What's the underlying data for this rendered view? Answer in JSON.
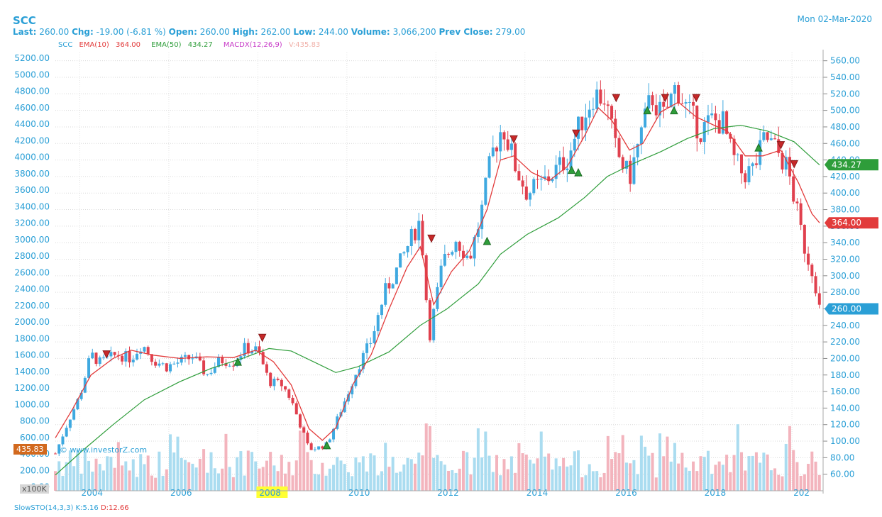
{
  "header": {
    "ticker": "SCC",
    "date": "Mon 02-Mar-2020",
    "last_label": "Last:",
    "last": "260.00",
    "chg_label": "Chg:",
    "chg": "-19.00 (-6.81 %)",
    "open_label": "Open:",
    "open": "260.00",
    "high_label": "High:",
    "high": "262.00",
    "low_label": "Low:",
    "low": "244.00",
    "volume_label": "Volume:",
    "volume": "3,066,200",
    "prev_label": "Prev Close:",
    "prev": "279.00"
  },
  "legend": {
    "symbol": "SCC",
    "ema10_label": "EMA(10)",
    "ema10_value": "364.00",
    "ema50_label": "EMA(50)",
    "ema50_value": "434.27",
    "macd_label": "MACDX(12,26,9)",
    "vol_label": "V:435.83"
  },
  "badges": {
    "ema50": "434.27",
    "ema10": "364.00",
    "last": "260.00",
    "volume": "435.83",
    "volume_unit": "x100K"
  },
  "watermark": "© www.investorZ.com",
  "slowsto": {
    "label": "SlowSTO(14,3,3)",
    "k": "K:5.16",
    "d": "D:12.66"
  },
  "colors": {
    "up": "#3fa9e0",
    "down": "#e0404e",
    "ema10": "#e23b3b",
    "ema50": "#2e9d3a",
    "vol_up": "#aadcf0",
    "vol_down": "#f3b4bd",
    "accent": "#2a9fd6",
    "highlight": "#ffff33"
  },
  "chart_data": {
    "type": "candlestick",
    "frequency": "monthly",
    "x_ticks": [
      "2004",
      "2006",
      "2008",
      "2010",
      "2012",
      "2014",
      "2016",
      "2018",
      "202"
    ],
    "highlighted_x_tick": "2008",
    "price_axis_right": {
      "ylim": [
        40,
        570
      ],
      "ticks": [
        "560.00",
        "540.00",
        "520.00",
        "500.00",
        "480.00",
        "460.00",
        "440.00",
        "420.00",
        "400.00",
        "380.00",
        "360.00",
        "340.00",
        "320.00",
        "300.00",
        "280.00",
        "260.00",
        "240.00",
        "220.00",
        "200.00",
        "180.00",
        "160.00",
        "140.00",
        "120.00",
        "100.00",
        "80.00",
        "60.00"
      ]
    },
    "volume_axis_left": {
      "unit": "x100K",
      "ticks": [
        "5200.00",
        "5000.00",
        "4800.00",
        "4600.00",
        "4400.00",
        "4200.00",
        "4000.00",
        "3800.00",
        "3600.00",
        "3400.00",
        "3200.00",
        "3000.00",
        "2800.00",
        "2600.00",
        "2400.00",
        "2200.00",
        "2000.00",
        "1800.00",
        "1600.00",
        "1400.00",
        "1200.00",
        "1000.00",
        "800.00",
        "600.00",
        "400.00",
        "200.00",
        "0.00"
      ]
    },
    "close_points": [
      {
        "x": 2003.0,
        "c": 85
      },
      {
        "x": 2003.3,
        "c": 125
      },
      {
        "x": 2003.55,
        "c": 155
      },
      {
        "x": 2003.8,
        "c": 205
      },
      {
        "x": 2004.0,
        "c": 195
      },
      {
        "x": 2004.4,
        "c": 205
      },
      {
        "x": 2004.7,
        "c": 200
      },
      {
        "x": 2004.95,
        "c": 218
      },
      {
        "x": 2005.2,
        "c": 198
      },
      {
        "x": 2005.5,
        "c": 190
      },
      {
        "x": 2005.8,
        "c": 196
      },
      {
        "x": 2006.1,
        "c": 202
      },
      {
        "x": 2006.4,
        "c": 180
      },
      {
        "x": 2006.7,
        "c": 198
      },
      {
        "x": 2007.0,
        "c": 196
      },
      {
        "x": 2007.25,
        "c": 212
      },
      {
        "x": 2007.55,
        "c": 210
      },
      {
        "x": 2007.8,
        "c": 172
      },
      {
        "x": 2008.1,
        "c": 168
      },
      {
        "x": 2008.3,
        "c": 150
      },
      {
        "x": 2008.5,
        "c": 120
      },
      {
        "x": 2008.7,
        "c": 90
      },
      {
        "x": 2008.9,
        "c": 92
      },
      {
        "x": 2009.1,
        "c": 96
      },
      {
        "x": 2009.3,
        "c": 122
      },
      {
        "x": 2009.55,
        "c": 155
      },
      {
        "x": 2009.8,
        "c": 190
      },
      {
        "x": 2010.1,
        "c": 222
      },
      {
        "x": 2010.4,
        "c": 280
      },
      {
        "x": 2010.7,
        "c": 310
      },
      {
        "x": 2010.95,
        "c": 340
      },
      {
        "x": 2011.2,
        "c": 368
      },
      {
        "x": 2011.4,
        "c": 225
      },
      {
        "x": 2011.7,
        "c": 315
      },
      {
        "x": 2012.0,
        "c": 345
      },
      {
        "x": 2012.3,
        "c": 320
      },
      {
        "x": 2012.55,
        "c": 370
      },
      {
        "x": 2012.8,
        "c": 445
      },
      {
        "x": 2013.05,
        "c": 482
      },
      {
        "x": 2013.35,
        "c": 430
      },
      {
        "x": 2013.6,
        "c": 400
      },
      {
        "x": 2013.9,
        "c": 410
      },
      {
        "x": 2014.2,
        "c": 425
      },
      {
        "x": 2014.5,
        "c": 442
      },
      {
        "x": 2014.8,
        "c": 485
      },
      {
        "x": 2015.1,
        "c": 520
      },
      {
        "x": 2015.35,
        "c": 515
      },
      {
        "x": 2015.6,
        "c": 450
      },
      {
        "x": 2015.9,
        "c": 418
      },
      {
        "x": 2016.15,
        "c": 470
      },
      {
        "x": 2016.4,
        "c": 518
      },
      {
        "x": 2016.65,
        "c": 490
      },
      {
        "x": 2016.95,
        "c": 530
      },
      {
        "x": 2017.2,
        "c": 500
      },
      {
        "x": 2017.5,
        "c": 475
      },
      {
        "x": 2017.75,
        "c": 488
      },
      {
        "x": 2018.0,
        "c": 485
      },
      {
        "x": 2018.2,
        "c": 445
      },
      {
        "x": 2018.45,
        "c": 422
      },
      {
        "x": 2018.7,
        "c": 430
      },
      {
        "x": 2018.95,
        "c": 468
      },
      {
        "x": 2019.2,
        "c": 452
      },
      {
        "x": 2019.45,
        "c": 430
      },
      {
        "x": 2019.65,
        "c": 380
      },
      {
        "x": 2019.85,
        "c": 330
      },
      {
        "x": 2020.05,
        "c": 300
      },
      {
        "x": 2020.17,
        "c": 260
      }
    ],
    "ema10_points": [
      {
        "x": 2003.0,
        "y": 104
      },
      {
        "x": 2003.4,
        "y": 140
      },
      {
        "x": 2003.8,
        "y": 180
      },
      {
        "x": 2004.3,
        "y": 200
      },
      {
        "x": 2004.7,
        "y": 210
      },
      {
        "x": 2005.2,
        "y": 204
      },
      {
        "x": 2005.8,
        "y": 200
      },
      {
        "x": 2006.4,
        "y": 202
      },
      {
        "x": 2007.0,
        "y": 201
      },
      {
        "x": 2007.5,
        "y": 210
      },
      {
        "x": 2007.9,
        "y": 196
      },
      {
        "x": 2008.3,
        "y": 168
      },
      {
        "x": 2008.7,
        "y": 115
      },
      {
        "x": 2009.0,
        "y": 101
      },
      {
        "x": 2009.3,
        "y": 116
      },
      {
        "x": 2009.7,
        "y": 170
      },
      {
        "x": 2010.1,
        "y": 205
      },
      {
        "x": 2010.5,
        "y": 260
      },
      {
        "x": 2010.9,
        "y": 310
      },
      {
        "x": 2011.2,
        "y": 335
      },
      {
        "x": 2011.5,
        "y": 265
      },
      {
        "x": 2011.9,
        "y": 305
      },
      {
        "x": 2012.3,
        "y": 330
      },
      {
        "x": 2012.7,
        "y": 380
      },
      {
        "x": 2013.0,
        "y": 440
      },
      {
        "x": 2013.3,
        "y": 445
      },
      {
        "x": 2013.7,
        "y": 425
      },
      {
        "x": 2014.1,
        "y": 415
      },
      {
        "x": 2014.5,
        "y": 432
      },
      {
        "x": 2014.9,
        "y": 470
      },
      {
        "x": 2015.2,
        "y": 503
      },
      {
        "x": 2015.5,
        "y": 488
      },
      {
        "x": 2015.9,
        "y": 452
      },
      {
        "x": 2016.2,
        "y": 460
      },
      {
        "x": 2016.6,
        "y": 498
      },
      {
        "x": 2017.0,
        "y": 510
      },
      {
        "x": 2017.4,
        "y": 492
      },
      {
        "x": 2017.8,
        "y": 482
      },
      {
        "x": 2018.1,
        "y": 475
      },
      {
        "x": 2018.5,
        "y": 445
      },
      {
        "x": 2018.9,
        "y": 445
      },
      {
        "x": 2019.3,
        "y": 452
      },
      {
        "x": 2019.7,
        "y": 412
      },
      {
        "x": 2020.0,
        "y": 375
      },
      {
        "x": 2020.17,
        "y": 364
      }
    ],
    "ema50_points": [
      {
        "x": 2003.0,
        "y": 59
      },
      {
        "x": 2003.6,
        "y": 88
      },
      {
        "x": 2004.3,
        "y": 120
      },
      {
        "x": 2005.0,
        "y": 150
      },
      {
        "x": 2005.8,
        "y": 172
      },
      {
        "x": 2006.5,
        "y": 188
      },
      {
        "x": 2007.2,
        "y": 200
      },
      {
        "x": 2007.8,
        "y": 212
      },
      {
        "x": 2008.3,
        "y": 209
      },
      {
        "x": 2008.8,
        "y": 196
      },
      {
        "x": 2009.3,
        "y": 183
      },
      {
        "x": 2009.8,
        "y": 190
      },
      {
        "x": 2010.5,
        "y": 208
      },
      {
        "x": 2011.2,
        "y": 240
      },
      {
        "x": 2011.8,
        "y": 260
      },
      {
        "x": 2012.5,
        "y": 290
      },
      {
        "x": 2013.0,
        "y": 326
      },
      {
        "x": 2013.6,
        "y": 350
      },
      {
        "x": 2014.3,
        "y": 370
      },
      {
        "x": 2014.9,
        "y": 395
      },
      {
        "x": 2015.4,
        "y": 420
      },
      {
        "x": 2016.0,
        "y": 436
      },
      {
        "x": 2016.6,
        "y": 450
      },
      {
        "x": 2017.2,
        "y": 466
      },
      {
        "x": 2017.8,
        "y": 478
      },
      {
        "x": 2018.4,
        "y": 482
      },
      {
        "x": 2019.0,
        "y": 475
      },
      {
        "x": 2019.6,
        "y": 462
      },
      {
        "x": 2020.17,
        "y": 434
      }
    ],
    "buy_signals": [
      {
        "x": 2007.1,
        "p": 196
      },
      {
        "x": 2009.1,
        "p": 95
      },
      {
        "x": 2012.7,
        "p": 342
      },
      {
        "x": 2014.6,
        "p": 428
      },
      {
        "x": 2014.75,
        "p": 425
      },
      {
        "x": 2016.3,
        "p": 500
      },
      {
        "x": 2016.9,
        "p": 500
      },
      {
        "x": 2018.8,
        "p": 455
      }
    ],
    "sell_signals": [
      {
        "x": 2004.15,
        "p": 205
      },
      {
        "x": 2007.65,
        "p": 225
      },
      {
        "x": 2011.45,
        "p": 345
      },
      {
        "x": 2013.3,
        "p": 465
      },
      {
        "x": 2014.7,
        "p": 472
      },
      {
        "x": 2015.6,
        "p": 515
      },
      {
        "x": 2016.7,
        "p": 515
      },
      {
        "x": 2017.4,
        "p": 515
      },
      {
        "x": 2019.3,
        "p": 458
      },
      {
        "x": 2019.6,
        "p": 435
      }
    ]
  }
}
